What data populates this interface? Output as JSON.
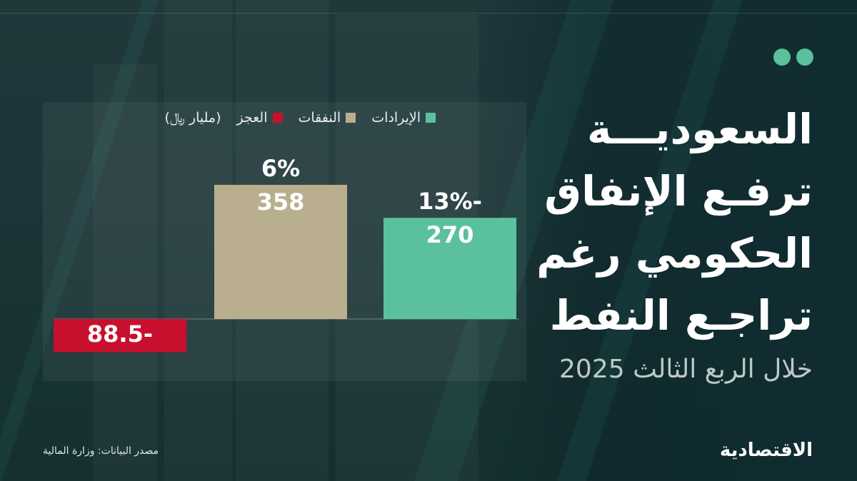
{
  "headline": {
    "lines": [
      "السعوديـــة",
      "ترفـع الإنفاق",
      "الحكومي رغم",
      "تراجـع النفط"
    ],
    "subtitle": "خلال الربع الثالث 2025"
  },
  "legend": {
    "unit": "(مليار ﷼)",
    "items": [
      {
        "label": "الإيرادات",
        "color": "#5bc09c"
      },
      {
        "label": "النفقات",
        "color": "#b9ae8e"
      },
      {
        "label": "العجز",
        "color": "#c8102e"
      }
    ]
  },
  "chart_data": {
    "type": "bar",
    "categories": [
      "العجز",
      "النفقات",
      "الإيرادات"
    ],
    "values": [
      -88.5,
      358,
      270
    ],
    "value_labels": [
      "88.5-",
      "358",
      "270"
    ],
    "change_labels": [
      "",
      "6%",
      "13%-"
    ],
    "colors": [
      "#c8102e",
      "#b9ae8e",
      "#5bc09c"
    ],
    "ylim": [
      -100,
      400
    ],
    "grid": false
  },
  "source": "مصدر البيانات: وزارة المالية",
  "brand": "الاقتصادية",
  "colors": {
    "accent": "#5bc09c",
    "background": "#183438"
  }
}
